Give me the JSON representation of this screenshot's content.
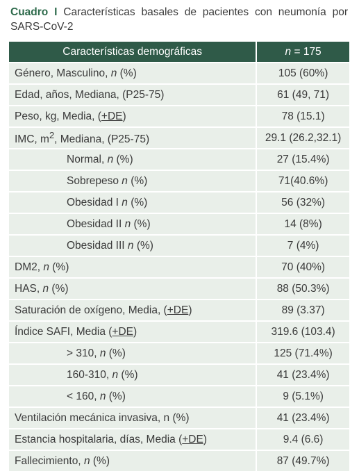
{
  "caption": {
    "label": "Cuadro I",
    "text": "Características basales de pacientes con neumonía por SARS-CoV-2"
  },
  "header": {
    "col1": "Características demográficas",
    "col2_n": "n",
    "col2_rest": " = 175"
  },
  "rows": [
    {
      "pre": "Género, Masculino, ",
      "it": "n",
      "post": " (%)",
      "value": "105 (60%)"
    },
    {
      "pre": "Edad, años, Mediana, (P25-75)",
      "value": "61 (49, 71)"
    },
    {
      "pre": "Peso, kg, Media, (",
      "u": "+DE",
      "post": ")",
      "value": "78 (15.1)"
    },
    {
      "pre": "IMC, m",
      "sup": "2",
      "post": ", Mediana, (P25-75)",
      "value": "29.1 (26.2,32.1)"
    },
    {
      "pre": "Normal, ",
      "it": "n",
      "post": " (%)",
      "value": "27 (15.4%)"
    },
    {
      "pre": "Sobrepeso ",
      "it": "n",
      "post": " (%)",
      "value": "71(40.6%)"
    },
    {
      "pre": "Obesidad I ",
      "it": "n",
      "post": " (%)",
      "value": "56 (32%)"
    },
    {
      "pre": "Obesidad II ",
      "it": "n",
      "post": " (%)",
      "value": "14 (8%)"
    },
    {
      "pre": "Obesidad III ",
      "it": "n",
      "post": " (%)",
      "value": "7 (4%)"
    },
    {
      "pre": "DM2, ",
      "it": "n",
      "post": " (%)",
      "value": "70 (40%)"
    },
    {
      "pre": "HAS, ",
      "it": "n",
      "post": " (%)",
      "value": "88 (50.3%)"
    },
    {
      "pre": "Saturación de oxígeno, Media, (",
      "u": "+DE",
      "post": ")",
      "value": "89 (3.37)"
    },
    {
      "pre": "Índice SAFI, Media (",
      "u": "+DE",
      "post": ")",
      "value": "319.6 (103.4)"
    },
    {
      "pre": "> 310, ",
      "it": "n",
      "post": " (%)",
      "value": "125 (71.4%)"
    },
    {
      "pre": "160-310, ",
      "it": "n",
      "post": " (%)",
      "value": "41 (23.4%)"
    },
    {
      "pre": "< 160, ",
      "it": "n",
      "post": " (%)",
      "value": "9 (5.1%)"
    },
    {
      "pre": "Ventilación mecánica invasiva, n (%)",
      "value": "41 (23.4%)"
    },
    {
      "pre": "Estancia hospitalaria, días, Media (",
      "u": "+DE",
      "post": ")",
      "value": "9.4 (6.6)"
    },
    {
      "pre": "Fallecimiento, ",
      "it": "n",
      "post": " (%)",
      "value": "87 (49.7%)"
    }
  ]
}
